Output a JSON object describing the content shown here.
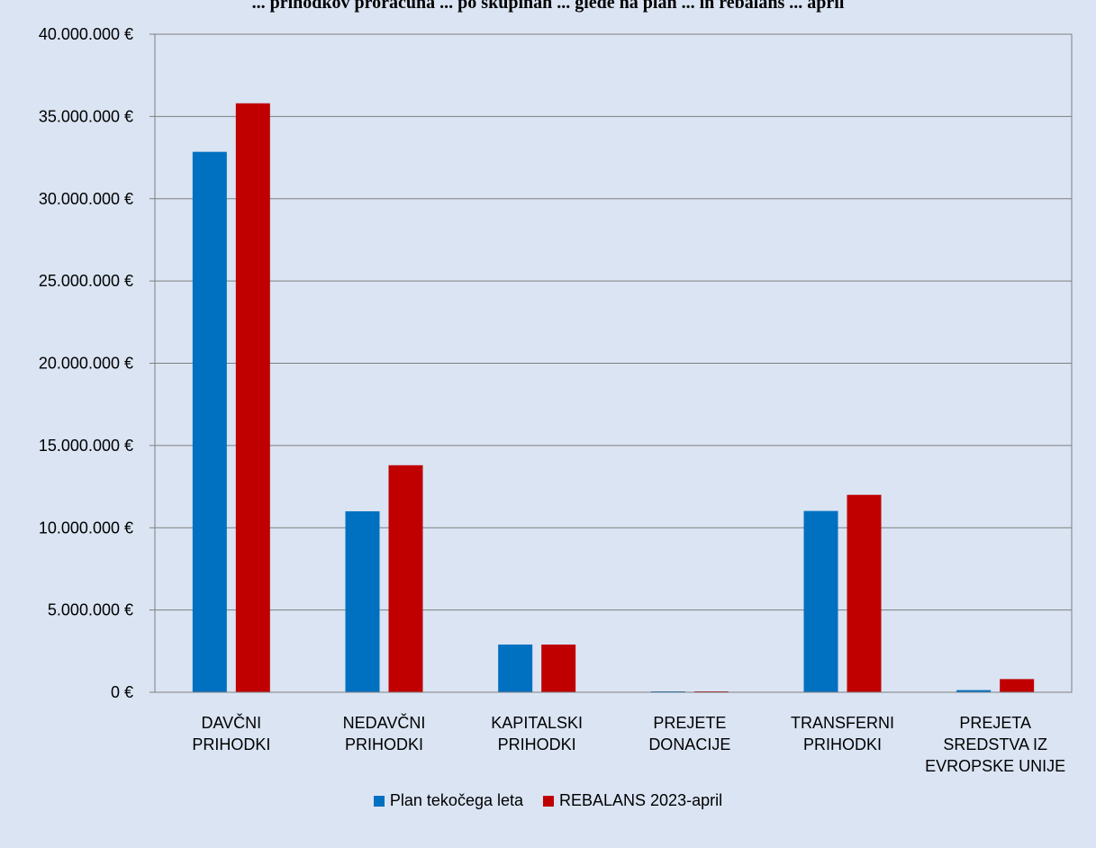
{
  "chart_data": {
    "type": "bar",
    "title": "... prihodkov proračuna ... po skupinah ... glede na plan ... in rebalans ... april",
    "categories": [
      [
        "DAVČNI",
        "PRIHODKI"
      ],
      [
        "NEDAVČNI",
        "PRIHODKI"
      ],
      [
        "KAPITALSKI",
        "PRIHODKI"
      ],
      [
        "PREJETE",
        "DONACIJE"
      ],
      [
        "TRANSFERNI",
        "PRIHODKI"
      ],
      [
        "PREJETA",
        "SREDSTVA IZ",
        "EVROPSKE UNIJE"
      ]
    ],
    "series": [
      {
        "name": "Plan tekočega leta",
        "color": "#0070c0",
        "values": [
          32850000,
          11000000,
          2900000,
          20000,
          11020000,
          130000
        ]
      },
      {
        "name": "REBALANS 2023-april",
        "color": "#c00000",
        "values": [
          35800000,
          13800000,
          2900000,
          20000,
          12000000,
          800000
        ]
      }
    ],
    "ylim": [
      0,
      40000000
    ],
    "yticks": [
      0,
      5000000,
      10000000,
      15000000,
      20000000,
      25000000,
      30000000,
      35000000,
      40000000
    ],
    "ytick_labels": [
      "0 €",
      "5.000.000 €",
      "10.000.000 €",
      "15.000.000 €",
      "20.000.000 €",
      "25.000.000 €",
      "30.000.000 €",
      "35.000.000 €",
      "40.000.000 €"
    ],
    "grid": true,
    "legend_position": "bottom"
  }
}
